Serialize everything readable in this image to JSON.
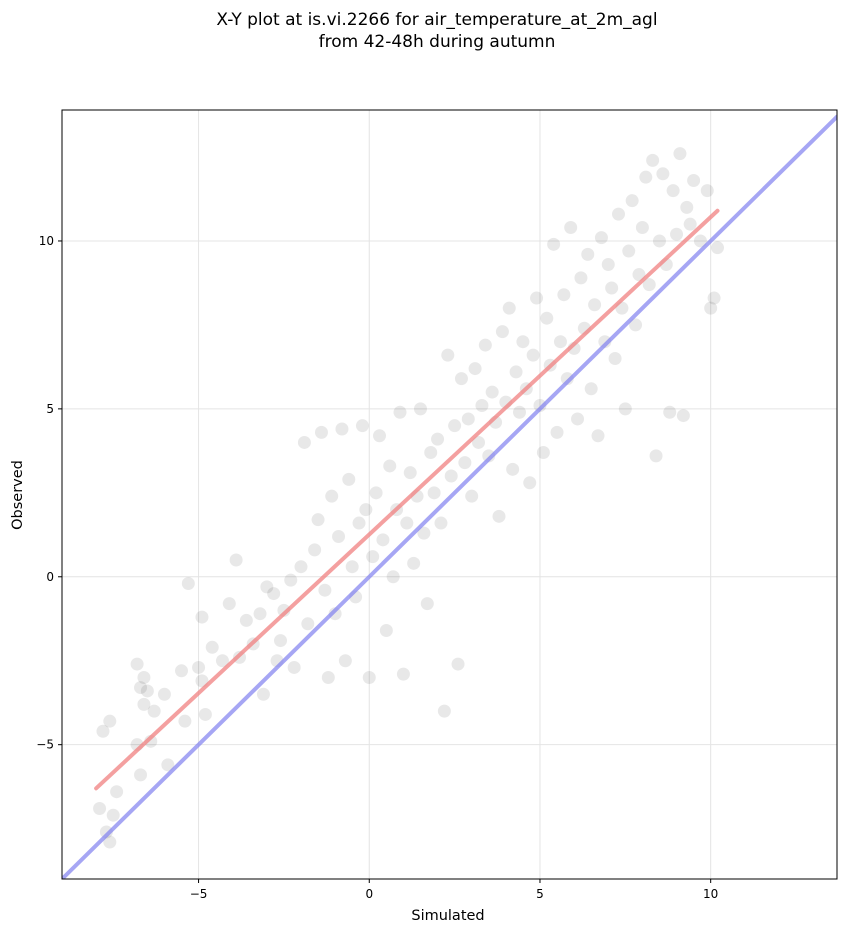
{
  "chart_data": {
    "type": "scatter",
    "title": "X-Y plot at is.vi.2266 for air_temperature_at_2m_agl",
    "subtitle": "from 42-48h during autumn",
    "xlabel": "Simulated",
    "ylabel": "Observed",
    "xlim": [
      -9.0,
      13.7
    ],
    "ylim": [
      -9.0,
      13.9
    ],
    "xticks": [
      -5,
      0,
      5,
      10
    ],
    "yticks": [
      -5,
      0,
      5,
      10
    ],
    "xtick_labels": [
      "−5",
      "0",
      "5",
      "10"
    ],
    "ytick_labels": [
      "−5",
      "0",
      "5",
      "10"
    ],
    "grid": true,
    "colors": {
      "points": "#000000",
      "regression_line": "#f08080",
      "identity_line": "#8080f0"
    },
    "identity_line": {
      "x": [
        -9.0,
        13.7
      ],
      "y": [
        -9.0,
        13.7
      ]
    },
    "regression_line": {
      "x": [
        -8.0,
        10.2
      ],
      "y": [
        -6.3,
        10.9
      ]
    },
    "points": {
      "note_point_count": "approximately 1600",
      "sample": [
        [
          -7.8,
          -4.6
        ],
        [
          -7.6,
          -4.3
        ],
        [
          -7.9,
          -6.9
        ],
        [
          -7.4,
          -6.4
        ],
        [
          -7.7,
          -7.6
        ],
        [
          -7.6,
          -7.9
        ],
        [
          -7.5,
          -7.1
        ],
        [
          -6.8,
          -2.6
        ],
        [
          -6.6,
          -3.0
        ],
        [
          -6.7,
          -3.3
        ],
        [
          -6.5,
          -3.4
        ],
        [
          -6.3,
          -4.0
        ],
        [
          -6.6,
          -3.8
        ],
        [
          -6.8,
          -5.0
        ],
        [
          -6.7,
          -5.9
        ],
        [
          -6.4,
          -4.9
        ],
        [
          -6.0,
          -3.5
        ],
        [
          -5.9,
          -5.6
        ],
        [
          -5.5,
          -2.8
        ],
        [
          -5.3,
          -0.2
        ],
        [
          -5.4,
          -4.3
        ],
        [
          -5.0,
          -2.7
        ],
        [
          -4.9,
          -3.1
        ],
        [
          -4.8,
          -4.1
        ],
        [
          -4.9,
          -1.2
        ],
        [
          -4.6,
          -2.1
        ],
        [
          -4.3,
          -2.5
        ],
        [
          -4.1,
          -0.8
        ],
        [
          -3.9,
          0.5
        ],
        [
          -3.8,
          -2.4
        ],
        [
          -3.6,
          -1.3
        ],
        [
          -3.4,
          -2.0
        ],
        [
          -3.2,
          -1.1
        ],
        [
          -3.1,
          -3.5
        ],
        [
          -3.0,
          -0.3
        ],
        [
          -2.8,
          -0.5
        ],
        [
          -2.7,
          -2.5
        ],
        [
          -2.6,
          -1.9
        ],
        [
          -2.5,
          -1.0
        ],
        [
          -2.3,
          -0.1
        ],
        [
          -2.2,
          -2.7
        ],
        [
          -2.0,
          0.3
        ],
        [
          -1.9,
          4.0
        ],
        [
          -1.8,
          -1.4
        ],
        [
          -1.6,
          0.8
        ],
        [
          -1.5,
          1.7
        ],
        [
          -1.4,
          4.3
        ],
        [
          -1.3,
          -0.4
        ],
        [
          -1.2,
          -3.0
        ],
        [
          -1.1,
          2.4
        ],
        [
          -1.0,
          -1.1
        ],
        [
          -0.9,
          1.2
        ],
        [
          -0.8,
          4.4
        ],
        [
          -0.7,
          -2.5
        ],
        [
          -0.6,
          2.9
        ],
        [
          -0.5,
          0.3
        ],
        [
          -0.4,
          -0.6
        ],
        [
          -0.3,
          1.6
        ],
        [
          -0.2,
          4.5
        ],
        [
          -0.1,
          2.0
        ],
        [
          0.0,
          -3.0
        ],
        [
          0.1,
          0.6
        ],
        [
          0.2,
          2.5
        ],
        [
          0.3,
          4.2
        ],
        [
          0.4,
          1.1
        ],
        [
          0.5,
          -1.6
        ],
        [
          0.6,
          3.3
        ],
        [
          0.7,
          0.0
        ],
        [
          0.8,
          2.0
        ],
        [
          0.9,
          4.9
        ],
        [
          1.0,
          -2.9
        ],
        [
          1.1,
          1.6
        ],
        [
          1.2,
          3.1
        ],
        [
          1.3,
          0.4
        ],
        [
          1.4,
          2.4
        ],
        [
          1.5,
          5.0
        ],
        [
          1.6,
          1.3
        ],
        [
          1.7,
          -0.8
        ],
        [
          1.8,
          3.7
        ],
        [
          1.9,
          2.5
        ],
        [
          2.0,
          4.1
        ],
        [
          2.1,
          1.6
        ],
        [
          2.2,
          -4.0
        ],
        [
          2.3,
          6.6
        ],
        [
          2.4,
          3.0
        ],
        [
          2.5,
          4.5
        ],
        [
          2.6,
          -2.6
        ],
        [
          2.7,
          5.9
        ],
        [
          2.8,
          3.4
        ],
        [
          2.9,
          4.7
        ],
        [
          3.0,
          2.4
        ],
        [
          3.1,
          6.2
        ],
        [
          3.2,
          4.0
        ],
        [
          3.3,
          5.1
        ],
        [
          3.4,
          6.9
        ],
        [
          3.5,
          3.6
        ],
        [
          3.6,
          5.5
        ],
        [
          3.7,
          4.6
        ],
        [
          3.8,
          1.8
        ],
        [
          3.9,
          7.3
        ],
        [
          4.0,
          5.2
        ],
        [
          4.1,
          8.0
        ],
        [
          4.2,
          3.2
        ],
        [
          4.3,
          6.1
        ],
        [
          4.4,
          4.9
        ],
        [
          4.5,
          7.0
        ],
        [
          4.6,
          5.6
        ],
        [
          4.7,
          2.8
        ],
        [
          4.8,
          6.6
        ],
        [
          4.9,
          8.3
        ],
        [
          5.0,
          5.1
        ],
        [
          5.1,
          3.7
        ],
        [
          5.2,
          7.7
        ],
        [
          5.3,
          6.3
        ],
        [
          5.4,
          9.9
        ],
        [
          5.5,
          4.3
        ],
        [
          5.6,
          7.0
        ],
        [
          5.7,
          8.4
        ],
        [
          5.8,
          5.9
        ],
        [
          5.9,
          10.4
        ],
        [
          6.0,
          6.8
        ],
        [
          6.1,
          4.7
        ],
        [
          6.2,
          8.9
        ],
        [
          6.3,
          7.4
        ],
        [
          6.4,
          9.6
        ],
        [
          6.5,
          5.6
        ],
        [
          6.6,
          8.1
        ],
        [
          6.7,
          4.2
        ],
        [
          6.8,
          10.1
        ],
        [
          6.9,
          7.0
        ],
        [
          7.0,
          9.3
        ],
        [
          7.1,
          8.6
        ],
        [
          7.2,
          6.5
        ],
        [
          7.3,
          10.8
        ],
        [
          7.4,
          8.0
        ],
        [
          7.5,
          5.0
        ],
        [
          7.6,
          9.7
        ],
        [
          7.7,
          11.2
        ],
        [
          7.8,
          7.5
        ],
        [
          7.9,
          9.0
        ],
        [
          8.0,
          10.4
        ],
        [
          8.1,
          11.9
        ],
        [
          8.2,
          8.7
        ],
        [
          8.3,
          12.4
        ],
        [
          8.4,
          3.6
        ],
        [
          8.5,
          10.0
        ],
        [
          8.6,
          12.0
        ],
        [
          8.7,
          9.3
        ],
        [
          8.8,
          4.9
        ],
        [
          8.9,
          11.5
        ],
        [
          9.0,
          10.2
        ],
        [
          9.1,
          12.6
        ],
        [
          9.2,
          4.8
        ],
        [
          9.3,
          11.0
        ],
        [
          9.4,
          10.5
        ],
        [
          9.5,
          11.8
        ],
        [
          9.7,
          10.0
        ],
        [
          9.9,
          11.5
        ],
        [
          10.0,
          8.0
        ],
        [
          10.1,
          8.3
        ],
        [
          10.2,
          9.8
        ]
      ]
    }
  }
}
